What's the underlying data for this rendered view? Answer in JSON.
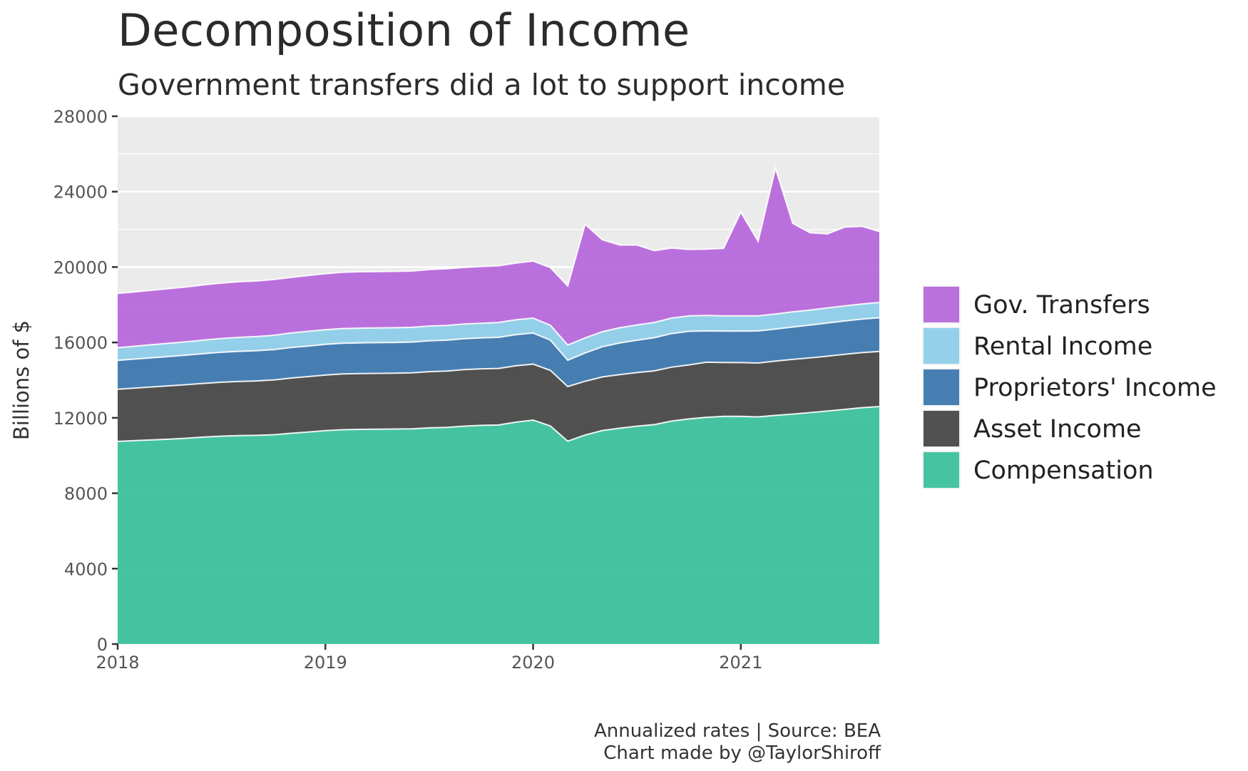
{
  "header": {
    "title": "Decomposition of Income",
    "subtitle": "Government transfers did a lot to support income"
  },
  "footer": {
    "caption_line1": "Annualized rates | Source: BEA",
    "caption_line2": "Chart made by @TaylorShiroff"
  },
  "chart_data": {
    "type": "area",
    "stacked": true,
    "ylabel": "Billions of $",
    "xlabel": "",
    "ylim": [
      0,
      28000
    ],
    "xlim": [
      2018.0,
      2021.6667
    ],
    "y_ticks": [
      0,
      4000,
      8000,
      12000,
      16000,
      20000,
      24000,
      28000
    ],
    "x_ticks": [
      2018,
      2019,
      2020,
      2021
    ],
    "x_tick_labels": [
      "2018",
      "2019",
      "2020",
      "2021"
    ],
    "grid": true,
    "legend_position": "right",
    "x": [
      "2018-01",
      "2018-02",
      "2018-03",
      "2018-04",
      "2018-05",
      "2018-06",
      "2018-07",
      "2018-08",
      "2018-09",
      "2018-10",
      "2018-11",
      "2018-12",
      "2019-01",
      "2019-02",
      "2019-03",
      "2019-04",
      "2019-05",
      "2019-06",
      "2019-07",
      "2019-08",
      "2019-09",
      "2019-10",
      "2019-11",
      "2019-12",
      "2020-01",
      "2020-02",
      "2020-03",
      "2020-04",
      "2020-05",
      "2020-06",
      "2020-07",
      "2020-08",
      "2020-09",
      "2020-10",
      "2020-11",
      "2020-12",
      "2021-01",
      "2021-02",
      "2021-03",
      "2021-04",
      "2021-05",
      "2021-06",
      "2021-07",
      "2021-08",
      "2021-09"
    ],
    "series": [
      {
        "name": "Compensation",
        "color": "#2ebd95",
        "values": [
          10750,
          10790,
          10830,
          10870,
          10920,
          10980,
          11030,
          11060,
          11070,
          11100,
          11180,
          11250,
          11320,
          11370,
          11390,
          11400,
          11410,
          11420,
          11470,
          11490,
          11560,
          11600,
          11620,
          11770,
          11880,
          11570,
          10760,
          11090,
          11330,
          11450,
          11560,
          11640,
          11830,
          11940,
          12030,
          12080,
          12080,
          12050,
          12130,
          12200,
          12280,
          12360,
          12450,
          12540,
          12600
        ]
      },
      {
        "name": "Asset Income",
        "color": "#3a3a3a",
        "values": [
          2770,
          2790,
          2810,
          2830,
          2840,
          2850,
          2860,
          2870,
          2890,
          2910,
          2930,
          2940,
          2950,
          2960,
          2960,
          2960,
          2960,
          2970,
          2980,
          2990,
          3000,
          3000,
          3000,
          2990,
          2970,
          2950,
          2900,
          2850,
          2840,
          2840,
          2840,
          2850,
          2860,
          2870,
          2920,
          2860,
          2850,
          2860,
          2880,
          2900,
          2900,
          2910,
          2920,
          2920,
          2920
        ]
      },
      {
        "name": "Proprietors' Income",
        "color": "#2f6ea8",
        "values": [
          1530,
          1540,
          1550,
          1560,
          1570,
          1580,
          1590,
          1600,
          1600,
          1610,
          1620,
          1620,
          1630,
          1630,
          1630,
          1630,
          1630,
          1630,
          1640,
          1640,
          1640,
          1640,
          1650,
          1650,
          1650,
          1600,
          1400,
          1500,
          1600,
          1680,
          1720,
          1760,
          1780,
          1780,
          1660,
          1660,
          1670,
          1700,
          1700,
          1720,
          1740,
          1760,
          1770,
          1780,
          1790
        ]
      },
      {
        "name": "Rental Income",
        "color": "#87cbe8",
        "values": [
          670,
          680,
          690,
          700,
          710,
          720,
          730,
          740,
          750,
          760,
          770,
          780,
          780,
          780,
          780,
          780,
          780,
          780,
          780,
          780,
          780,
          780,
          790,
          790,
          790,
          790,
          800,
          800,
          800,
          810,
          810,
          810,
          820,
          820,
          820,
          810,
          810,
          800,
          800,
          800,
          800,
          800,
          800,
          800,
          810
        ]
      },
      {
        "name": "Gov. Transfers",
        "color": "#b35fd9",
        "values": [
          2880,
          2880,
          2890,
          2900,
          2910,
          2930,
          2940,
          2950,
          2950,
          2960,
          2950,
          2960,
          2970,
          2980,
          2990,
          2990,
          2990,
          2990,
          3000,
          3010,
          3000,
          3010,
          3010,
          3010,
          3030,
          3060,
          3140,
          6030,
          4880,
          4390,
          4240,
          3810,
          3720,
          3520,
          3520,
          3580,
          5500,
          3960,
          7740,
          4700,
          4100,
          3930,
          4180,
          4120,
          3760
        ]
      }
    ]
  }
}
